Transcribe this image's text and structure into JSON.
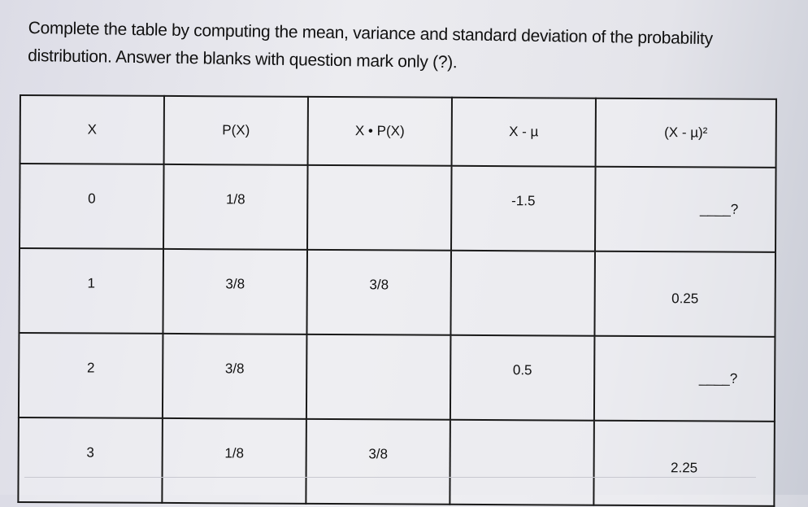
{
  "instructions": "Complete the table by computing the mean, variance and standard deviation of the probability distribution. Answer the blanks with question mark only (?).",
  "table": {
    "headers": [
      "X",
      "P(X)",
      "X • P(X)",
      "X - µ",
      "(X - µ)²"
    ],
    "rows": [
      [
        "0",
        "1/8",
        "",
        "-1.5",
        "____?"
      ],
      [
        "1",
        "3/8",
        "3/8",
        "",
        "0.25"
      ],
      [
        "2",
        "3/8",
        "",
        "0.5",
        "____?"
      ],
      [
        "3",
        "1/8",
        "3/8",
        "",
        "2.25"
      ]
    ]
  }
}
